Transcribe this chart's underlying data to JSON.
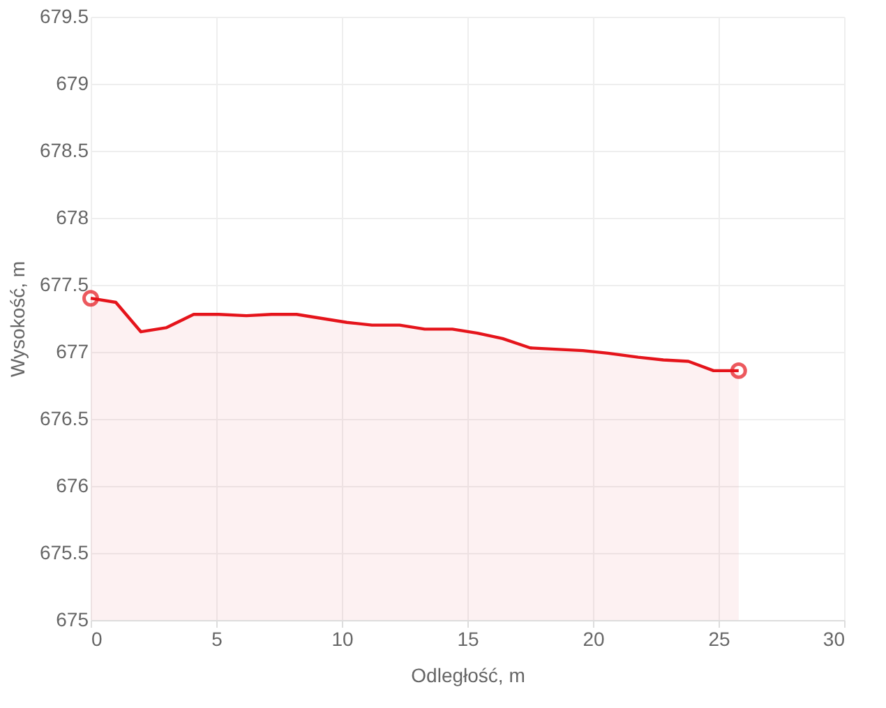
{
  "chart_data": {
    "type": "area",
    "xlabel": "Odległość, m",
    "ylabel": "Wysokość, m",
    "x": [
      0,
      1.0,
      2.0,
      3.0,
      4.1,
      5.1,
      6.2,
      7.2,
      8.2,
      9.2,
      10.2,
      11.2,
      12.3,
      13.3,
      14.4,
      15.4,
      16.4,
      17.5,
      18.5,
      19.6,
      20.6,
      21.8,
      22.8,
      23.8,
      24.8,
      25.8
    ],
    "series": [
      {
        "color": "#e5141b",
        "values": [
          677.4,
          677.37,
          677.15,
          677.18,
          677.28,
          677.28,
          677.27,
          677.28,
          677.28,
          677.25,
          677.22,
          677.2,
          677.2,
          677.17,
          677.17,
          677.14,
          677.1,
          677.03,
          677.02,
          677.01,
          676.99,
          676.96,
          676.94,
          676.93,
          676.86,
          676.86
        ]
      }
    ],
    "xlim": [
      0,
      30
    ],
    "xticks": [
      0,
      5,
      10,
      15,
      20,
      25,
      30
    ],
    "ylim": [
      675,
      679.5
    ],
    "yticks": [
      675,
      675.5,
      676,
      676.5,
      677,
      677.5,
      678,
      678.5,
      679,
      679.5
    ],
    "grid": true
  }
}
